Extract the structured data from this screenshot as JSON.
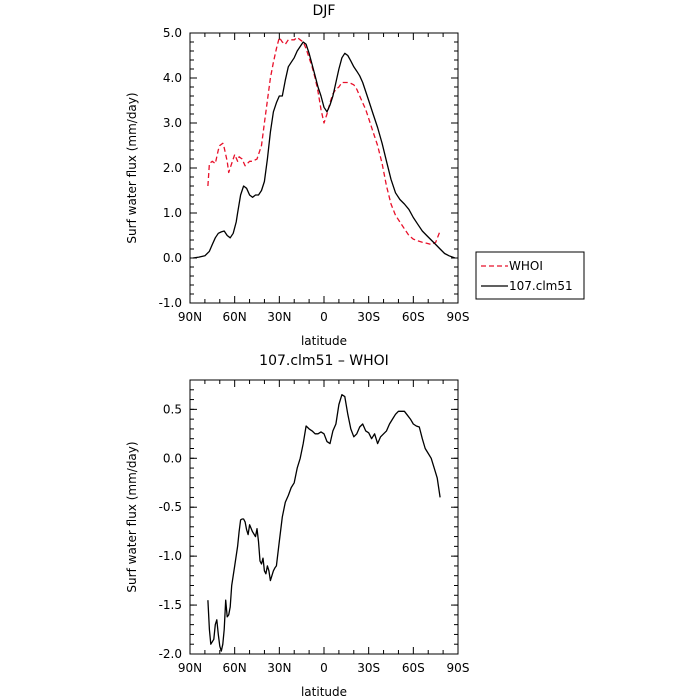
{
  "chart_data": [
    {
      "type": "line",
      "title": "DJF",
      "xlabel": "latitude",
      "ylabel": "Surf water flux (mm/day)",
      "xlim": [
        90,
        -90
      ],
      "ylim": [
        -1.0,
        5.0
      ],
      "x_ticks": [
        90,
        60,
        30,
        0,
        -30,
        -60,
        -90
      ],
      "x_tick_labels": [
        "90N",
        "60N",
        "30N",
        "0",
        "30S",
        "60S",
        "90S"
      ],
      "y_ticks": [
        -1.0,
        0.0,
        1.0,
        2.0,
        3.0,
        4.0,
        5.0
      ],
      "y_tick_labels": [
        "-1.0",
        "0.0",
        "1.0",
        "2.0",
        "3.0",
        "4.0",
        "5.0"
      ],
      "legend_position": "outside-right",
      "series": [
        {
          "name": "WHOI",
          "color": "#e8102a",
          "dash": "dashed",
          "x": [
            78,
            77,
            75,
            73,
            71,
            70,
            68,
            67,
            65,
            64,
            62,
            60,
            58,
            57,
            55,
            53,
            50,
            48,
            45,
            42,
            40,
            38,
            36,
            34,
            32,
            30,
            28,
            26,
            24,
            22,
            20,
            18,
            16,
            14,
            12,
            10,
            8,
            6,
            4,
            2,
            0,
            -2,
            -4,
            -6,
            -8,
            -10,
            -12,
            -14,
            -16,
            -18,
            -20,
            -22,
            -24,
            -26,
            -28,
            -30,
            -33,
            -36,
            -39,
            -42,
            -45,
            -48,
            -51,
            -54,
            -57,
            -60,
            -63,
            -66,
            -69,
            -72,
            -75,
            -78
          ],
          "y": [
            1.6,
            2.1,
            2.15,
            2.1,
            2.4,
            2.5,
            2.55,
            2.45,
            2.15,
            1.9,
            2.1,
            2.3,
            2.15,
            2.25,
            2.2,
            2.05,
            2.15,
            2.15,
            2.2,
            2.5,
            3.0,
            3.5,
            4.0,
            4.35,
            4.65,
            4.9,
            4.8,
            4.75,
            4.85,
            4.85,
            4.85,
            4.9,
            4.85,
            4.8,
            4.65,
            4.45,
            4.25,
            4.0,
            3.7,
            3.3,
            3.0,
            3.2,
            3.45,
            3.65,
            3.75,
            3.8,
            3.9,
            3.9,
            3.9,
            3.88,
            3.85,
            3.75,
            3.6,
            3.45,
            3.3,
            3.1,
            2.8,
            2.5,
            2.1,
            1.6,
            1.2,
            0.95,
            0.8,
            0.65,
            0.5,
            0.42,
            0.38,
            0.35,
            0.33,
            0.3,
            0.35,
            0.6
          ]
        },
        {
          "name": "107.clm51",
          "color": "#000000",
          "dash": "solid",
          "x": [
            88,
            84,
            80,
            77,
            75,
            73,
            71,
            69,
            67,
            65,
            63,
            61,
            59,
            58,
            57,
            56,
            54,
            52,
            50,
            48,
            46,
            44,
            42,
            40,
            38,
            36,
            34,
            32,
            30,
            28,
            26,
            24,
            22,
            20,
            18,
            16,
            14,
            12,
            10,
            8,
            6,
            4,
            2,
            0,
            -2,
            -4,
            -6,
            -8,
            -10,
            -12,
            -14,
            -16,
            -18,
            -20,
            -22,
            -24,
            -26,
            -28,
            -30,
            -33,
            -36,
            -39,
            -42,
            -45,
            -48,
            -51,
            -54,
            -57,
            -60,
            -63,
            -66,
            -69,
            -72,
            -75,
            -78,
            -81,
            -84,
            -88
          ],
          "y": [
            0.0,
            0.02,
            0.05,
            0.15,
            0.3,
            0.45,
            0.55,
            0.58,
            0.6,
            0.5,
            0.45,
            0.55,
            0.8,
            1.0,
            1.2,
            1.4,
            1.6,
            1.55,
            1.4,
            1.35,
            1.4,
            1.4,
            1.5,
            1.7,
            2.2,
            2.8,
            3.25,
            3.45,
            3.6,
            3.6,
            3.95,
            4.25,
            4.35,
            4.45,
            4.6,
            4.7,
            4.8,
            4.75,
            4.55,
            4.3,
            4.05,
            3.8,
            3.6,
            3.35,
            3.25,
            3.4,
            3.6,
            3.9,
            4.2,
            4.45,
            4.55,
            4.5,
            4.38,
            4.25,
            4.15,
            4.05,
            3.9,
            3.7,
            3.5,
            3.2,
            2.9,
            2.55,
            2.15,
            1.75,
            1.45,
            1.3,
            1.2,
            1.08,
            0.9,
            0.75,
            0.6,
            0.5,
            0.4,
            0.3,
            0.2,
            0.1,
            0.05,
            0.0
          ]
        }
      ]
    },
    {
      "type": "line",
      "title": "107.clm51 – WHOI",
      "xlabel": "latitude",
      "ylabel": "Surf water flux (mm/day)",
      "xlim": [
        90,
        -90
      ],
      "ylim": [
        -2.0,
        0.8
      ],
      "x_ticks": [
        90,
        60,
        30,
        0,
        -30,
        -60,
        -90
      ],
      "x_tick_labels": [
        "90N",
        "60N",
        "30N",
        "0",
        "30S",
        "60S",
        "90S"
      ],
      "y_ticks": [
        -2.0,
        -1.5,
        -1.0,
        -0.5,
        0.0,
        0.5
      ],
      "y_tick_labels": [
        "-2.0",
        "-1.5",
        "-1.0",
        "-0.5",
        "0.0",
        "0.5"
      ],
      "series": [
        {
          "name": "",
          "color": "#000000",
          "dash": "solid",
          "x": [
            78,
            77,
            76,
            74,
            73,
            72,
            71,
            70,
            69,
            68,
            67,
            66,
            65,
            64,
            63,
            62,
            60,
            58,
            57,
            56,
            55,
            54,
            53,
            52,
            51,
            50,
            48,
            46,
            45,
            44,
            43,
            42,
            41,
            40,
            39,
            38,
            37,
            36,
            35,
            34,
            33,
            32,
            30,
            28,
            26,
            24,
            22,
            20,
            18,
            16,
            14,
            12,
            10,
            8,
            6,
            4,
            2,
            0,
            -2,
            -4,
            -6,
            -8,
            -10,
            -12,
            -14,
            -16,
            -18,
            -20,
            -22,
            -24,
            -26,
            -28,
            -30,
            -32,
            -34,
            -36,
            -38,
            -40,
            -42,
            -44,
            -46,
            -48,
            -50,
            -52,
            -54,
            -56,
            -58,
            -60,
            -62,
            -64,
            -66,
            -68,
            -70,
            -72,
            -74,
            -76,
            -78
          ],
          "y": [
            -1.45,
            -1.75,
            -1.9,
            -1.85,
            -1.7,
            -1.65,
            -1.8,
            -1.92,
            -1.97,
            -1.9,
            -1.75,
            -1.45,
            -1.62,
            -1.6,
            -1.52,
            -1.3,
            -1.1,
            -0.9,
            -0.75,
            -0.63,
            -0.62,
            -0.62,
            -0.65,
            -0.73,
            -0.78,
            -0.68,
            -0.75,
            -0.8,
            -0.72,
            -0.85,
            -1.05,
            -1.08,
            -1.02,
            -1.15,
            -1.18,
            -1.1,
            -1.15,
            -1.25,
            -1.2,
            -1.15,
            -1.12,
            -1.1,
            -0.85,
            -0.6,
            -0.45,
            -0.38,
            -0.3,
            -0.25,
            -0.1,
            0.0,
            0.15,
            0.33,
            0.3,
            0.28,
            0.25,
            0.25,
            0.27,
            0.25,
            0.17,
            0.15,
            0.28,
            0.35,
            0.55,
            0.65,
            0.63,
            0.45,
            0.3,
            0.22,
            0.25,
            0.32,
            0.35,
            0.28,
            0.26,
            0.2,
            0.25,
            0.15,
            0.22,
            0.25,
            0.28,
            0.35,
            0.4,
            0.45,
            0.48,
            0.48,
            0.48,
            0.44,
            0.4,
            0.35,
            0.33,
            0.32,
            0.2,
            0.1,
            0.05,
            0.0,
            -0.1,
            -0.2,
            -0.4
          ]
        }
      ]
    }
  ]
}
